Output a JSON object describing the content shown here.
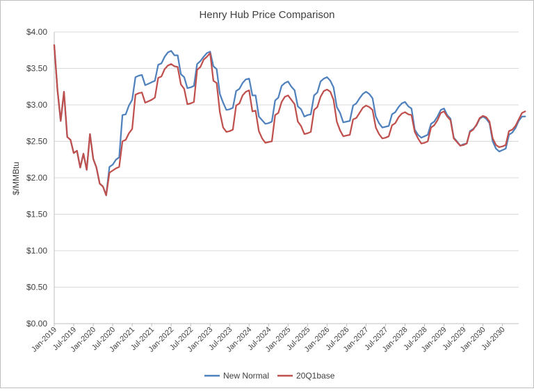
{
  "chart_data": {
    "type": "line",
    "title": "Henry Hub Price Comparison",
    "ylabel": "$/MMBtu",
    "xlabel": "",
    "ylim": [
      0,
      4
    ],
    "yticks": [
      0,
      0.5,
      1,
      1.5,
      2,
      2.5,
      3,
      3.5,
      4
    ],
    "ytick_labels": [
      "$0.00",
      "$0.50",
      "$1.00",
      "$1.50",
      "$2.00",
      "$2.50",
      "$3.00",
      "$3.50",
      "$4.00"
    ],
    "x_start": "2019-01",
    "x_months": 144,
    "xtick_labels": [
      "Jan-2019",
      "Jul-2019",
      "Jan-2020",
      "Jul-2020",
      "Jan-2021",
      "Jul-2021",
      "Jan-2022",
      "Jul-2022",
      "Jan-2023",
      "Jul-2023",
      "Jan-2024",
      "Jul-2024",
      "Jan-2025",
      "Jul-2025",
      "Jan-2026",
      "Jul-2026",
      "Jan-2027",
      "Jul-2027",
      "Jan-2028",
      "Jul-2028",
      "Jan-2029",
      "Jul-2029",
      "Jan-2030",
      "Jul-2030"
    ],
    "grid": true,
    "legend_position": "bottom",
    "series": [
      {
        "name": "New Normal",
        "color": "#4F81BD",
        "values": [
          3.82,
          3.2,
          2.78,
          3.18,
          2.56,
          2.52,
          2.34,
          2.37,
          2.14,
          2.33,
          2.11,
          2.6,
          2.26,
          2.14,
          1.92,
          1.88,
          1.76,
          2.15,
          2.18,
          2.25,
          2.28,
          2.86,
          2.87,
          2.99,
          3.07,
          3.38,
          3.4,
          3.41,
          3.27,
          3.29,
          3.31,
          3.33,
          3.55,
          3.57,
          3.66,
          3.72,
          3.74,
          3.68,
          3.68,
          3.42,
          3.38,
          3.23,
          3.24,
          3.26,
          3.56,
          3.6,
          3.66,
          3.71,
          3.73,
          3.53,
          3.49,
          3.15,
          3.03,
          2.93,
          2.94,
          2.96,
          3.19,
          3.22,
          3.3,
          3.35,
          3.36,
          3.13,
          3.13,
          2.84,
          2.79,
          2.74,
          2.75,
          2.77,
          3.06,
          3.1,
          3.26,
          3.3,
          3.32,
          3.25,
          3.2,
          2.98,
          2.94,
          2.84,
          2.86,
          2.87,
          3.13,
          3.17,
          3.32,
          3.36,
          3.38,
          3.33,
          3.24,
          2.97,
          2.89,
          2.76,
          2.77,
          2.78,
          2.99,
          3.02,
          3.09,
          3.15,
          3.18,
          3.15,
          3.09,
          2.84,
          2.75,
          2.69,
          2.7,
          2.71,
          2.87,
          2.9,
          2.97,
          3.02,
          3.04,
          2.98,
          2.95,
          2.66,
          2.59,
          2.55,
          2.57,
          2.59,
          2.74,
          2.77,
          2.84,
          2.93,
          2.95,
          2.86,
          2.81,
          2.55,
          2.5,
          2.44,
          2.46,
          2.47,
          2.64,
          2.67,
          2.72,
          2.81,
          2.84,
          2.81,
          2.75,
          2.5,
          2.4,
          2.36,
          2.38,
          2.4,
          2.59,
          2.62,
          2.68,
          2.78,
          2.84,
          2.84
        ]
      },
      {
        "name": "20Q1base",
        "color": "#C0504D",
        "values": [
          3.82,
          3.2,
          2.78,
          3.18,
          2.56,
          2.52,
          2.34,
          2.37,
          2.14,
          2.33,
          2.11,
          2.6,
          2.26,
          2.14,
          1.92,
          1.88,
          1.76,
          2.07,
          2.1,
          2.13,
          2.15,
          2.5,
          2.52,
          2.61,
          2.67,
          3.14,
          3.16,
          3.17,
          3.03,
          3.05,
          3.07,
          3.1,
          3.37,
          3.39,
          3.49,
          3.54,
          3.56,
          3.53,
          3.52,
          3.28,
          3.22,
          3.01,
          3.02,
          3.04,
          3.48,
          3.52,
          3.62,
          3.66,
          3.71,
          3.33,
          3.3,
          2.9,
          2.69,
          2.63,
          2.64,
          2.66,
          2.99,
          3.02,
          3.13,
          3.18,
          3.2,
          2.91,
          2.92,
          2.64,
          2.54,
          2.48,
          2.49,
          2.5,
          2.86,
          2.89,
          3.04,
          3.11,
          3.13,
          3.07,
          3.01,
          2.77,
          2.71,
          2.6,
          2.61,
          2.63,
          2.93,
          2.97,
          3.11,
          3.19,
          3.21,
          3.18,
          3.07,
          2.77,
          2.65,
          2.57,
          2.58,
          2.59,
          2.8,
          2.82,
          2.89,
          2.96,
          2.99,
          2.97,
          2.93,
          2.69,
          2.6,
          2.54,
          2.55,
          2.57,
          2.72,
          2.75,
          2.83,
          2.88,
          2.9,
          2.87,
          2.86,
          2.63,
          2.54,
          2.47,
          2.48,
          2.5,
          2.69,
          2.72,
          2.79,
          2.89,
          2.91,
          2.84,
          2.79,
          2.54,
          2.49,
          2.44,
          2.45,
          2.47,
          2.63,
          2.66,
          2.73,
          2.82,
          2.85,
          2.83,
          2.77,
          2.54,
          2.45,
          2.42,
          2.43,
          2.45,
          2.64,
          2.66,
          2.71,
          2.8,
          2.89,
          2.91
        ]
      }
    ]
  }
}
